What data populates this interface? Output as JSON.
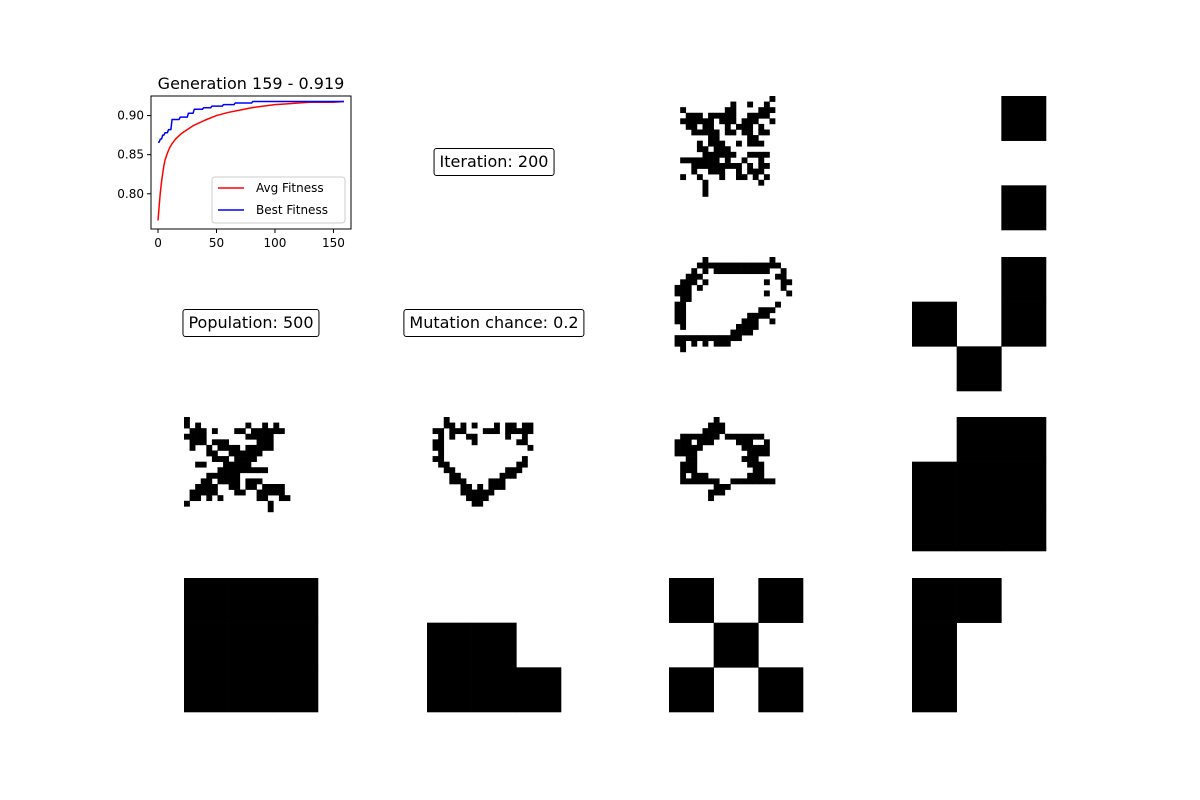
{
  "chart_data": {
    "type": "line",
    "title": "Generation 159 - 0.919",
    "xlim": [
      -6,
      165
    ],
    "ylim": [
      0.755,
      0.925
    ],
    "x_ticks": [
      0,
      50,
      100,
      150
    ],
    "y_ticks": [
      0.8,
      0.85,
      0.9
    ],
    "x_tick_labels": [
      "0",
      "50",
      "100",
      "150"
    ],
    "y_tick_labels": [
      "0.80",
      "0.85",
      "0.90"
    ],
    "legend_position": "lower-right",
    "grid": false,
    "series": [
      {
        "name": "Avg Fitness",
        "color": "#ff0000",
        "x": [
          0,
          1,
          2,
          3,
          4,
          5,
          6,
          8,
          10,
          12,
          15,
          20,
          25,
          30,
          40,
          50,
          60,
          70,
          80,
          90,
          100,
          110,
          120,
          130,
          140,
          150,
          159
        ],
        "y": [
          0.766,
          0.785,
          0.802,
          0.815,
          0.826,
          0.836,
          0.843,
          0.852,
          0.859,
          0.864,
          0.87,
          0.877,
          0.882,
          0.887,
          0.894,
          0.9,
          0.904,
          0.907,
          0.91,
          0.912,
          0.914,
          0.915,
          0.916,
          0.917,
          0.917,
          0.917,
          0.918
        ]
      },
      {
        "name": "Best Fitness",
        "color": "#0000ff",
        "x": [
          0,
          1,
          2,
          3,
          4,
          5,
          6,
          8,
          9,
          11,
          12,
          18,
          19,
          25,
          26,
          30,
          31,
          38,
          39,
          45,
          46,
          55,
          56,
          65,
          66,
          80,
          81,
          159
        ],
        "y": [
          0.866,
          0.866,
          0.87,
          0.87,
          0.875,
          0.875,
          0.878,
          0.878,
          0.882,
          0.882,
          0.895,
          0.895,
          0.898,
          0.898,
          0.903,
          0.903,
          0.908,
          0.908,
          0.91,
          0.91,
          0.912,
          0.912,
          0.914,
          0.914,
          0.916,
          0.916,
          0.918,
          0.918
        ]
      }
    ]
  },
  "info": {
    "iteration": "Iteration: 200",
    "population": "Population: 500",
    "mutation": "Mutation chance: 0.2"
  },
  "grids": [
    {
      "name": "generated-pattern-row1-col3",
      "size": 24,
      "cells": [
        "000000000000000000100000",
        "000000000001001001000000",
        "001000000011000011100000",
        "000111011111001111000000",
        "001111110111011100100000",
        "000110110010111010000000",
        "000011111011011011000000",
        "000000011000001100000000",
        "000001011100101110000000",
        "000001101110000000000000",
        "000000111111001111000000",
        "001111111010010010000000",
        "000011111111101011000000",
        "000010011100101110000000",
        "001001000100110101000000",
        "000000100000000010000000",
        "000000100000000000000000",
        "000000100000000000000000",
        "000000000000000000000000",
        "000000000000000000000000",
        "000000000000000000000000",
        "000000000000000000000000",
        "000000000000000000000000",
        "000000000000000000000000"
      ]
    },
    {
      "name": "generated-pattern-row2-col3",
      "size": 24,
      "cells": [
        "000000100000000000100000",
        "000001111111111111110000",
        "000010101111111111001000",
        "000111000000000000011000",
        "001110100000000001001100",
        "011101000000000000001000",
        "011100000000000001000100",
        "001100000000000000000000",
        "011000000000000000010000",
        "011000000000000011100000",
        "011000000000001111000000",
        "011000000000011100100000",
        "001000000000111100000000",
        "000000000001111000000000",
        "011111111111100000000000",
        "011010101110000000000000",
        "001000000000000000000000",
        "000000000000000000000000",
        "000000000000000000000000",
        "000000000000000000000000",
        "000000000000000000000000",
        "000000000000000000000000",
        "000000000000000000000000",
        "000000000000000000000000"
      ]
    },
    {
      "name": "generated-pattern-row3-col1",
      "size": 24,
      "cells": [
        "100000000000000000000000",
        "101000000001001010000000",
        "011101000110111111000000",
        "111100000001111100000000",
        "011101110000011100000000",
        "010010111101111100000000",
        "000011001111110000000000",
        "000001110111100000000000",
        "001100011111000000000000",
        "000000111111111000000000",
        "000011111100000000000000",
        "000110111101110000000000",
        "001111001101101111000000",
        "011111000110011111000000",
        "011010100000011001100000",
        "100000000000000100000000",
        "000000000000000100000000",
        "000000000000000000000000",
        "000000000000000000000000",
        "000000000000000000000000",
        "000000000000000000000000",
        "000000000000000000000000",
        "000000000000000000000000",
        "000000000000000000000000"
      ]
    },
    {
      "name": "generated-pattern-row3-col2",
      "size": 24,
      "cells": [
        "000100000000000000000000",
        "000110101000101101100000",
        "011011100011101111100000",
        "001010011000001001000000",
        "011000001000000011000000",
        "011000000000000000100000",
        "001000000000000000000000",
        "011000000000000001000000",
        "001100000000000011000000",
        "000110000000001110000000",
        "000011000000011100000000",
        "000011100001110000000000",
        "000000110101110000000000",
        "000000111111000000000000",
        "000000011110000000000000",
        "000000001100000000000000",
        "000000000000000000000000",
        "000000000000000000000000",
        "000000000000000000000000",
        "000000000000000000000000",
        "000000000000000000000000",
        "000000000000000000000000",
        "000000000000000000000000",
        "000000000000000000000000"
      ]
    },
    {
      "name": "generated-pattern-row3-col3",
      "size": 24,
      "cells": [
        "000000001000000000000000",
        "000000011100000000000000",
        "000000111100000000000000",
        "001111111011111110000000",
        "011101110000111001000000",
        "011111000000011111000000",
        "011110000000001111000000",
        "000110000000011100000000",
        "001110000000001110000000",
        "001110000000000110000000",
        "001011100000001110000000",
        "001111111001111111100000",
        "000000001110000000000000",
        "000000011100000000000000",
        "000000010000000000000000",
        "000000000000000000000000",
        "000000000000000000000000",
        "000000000000000000000000",
        "000000000000000000000000",
        "000000000000000000000000",
        "000000000000000000000000",
        "000000000000000000000000",
        "000000000000000000000000",
        "000000000000000000000000"
      ]
    },
    {
      "name": "target-pattern-row1-col4",
      "size": 3,
      "cells": [
        "001",
        "000",
        "001"
      ]
    },
    {
      "name": "target-pattern-row2-col4",
      "size": 3,
      "cells": [
        "001",
        "101",
        "010"
      ]
    },
    {
      "name": "target-pattern-row3-col4",
      "size": 3,
      "cells": [
        "011",
        "111",
        "111"
      ]
    },
    {
      "name": "target-pattern-row4-col1",
      "size": 3,
      "cells": [
        "111",
        "111",
        "111"
      ]
    },
    {
      "name": "target-pattern-row4-col2",
      "size": 3,
      "cells": [
        "000",
        "110",
        "111"
      ]
    },
    {
      "name": "target-pattern-row4-col3",
      "size": 3,
      "cells": [
        "101",
        "010",
        "101"
      ]
    },
    {
      "name": "target-pattern-row4-col4",
      "size": 3,
      "cells": [
        "110",
        "100",
        "100"
      ]
    }
  ]
}
